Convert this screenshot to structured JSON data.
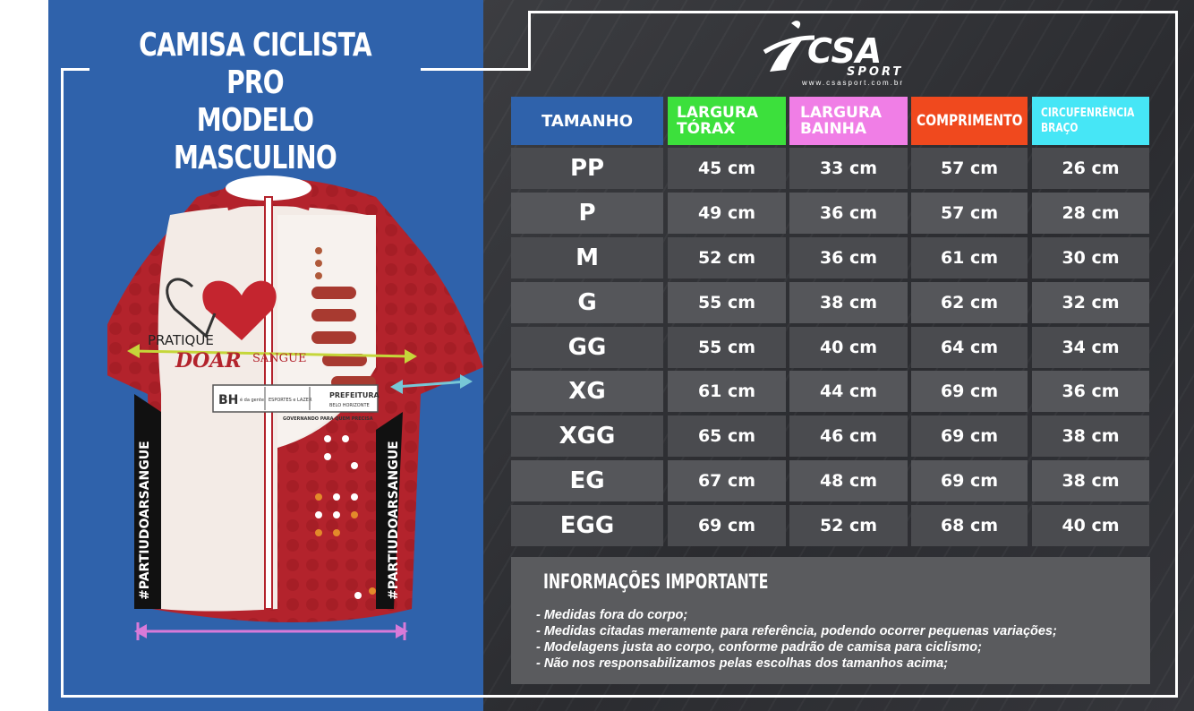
{
  "title": {
    "line1": "CAMISA  CICLISTA PRO",
    "line2": "MODELO MASCULINO"
  },
  "brand": {
    "name": "CSA",
    "sub": "SPORT",
    "url": "www.csasport.com.br"
  },
  "jersey": {
    "logo_text_1": "PRATIQUE",
    "logo_text_2": "DOAR",
    "logo_text_3": "SANGUE",
    "side_text": "#PARTIUDOARSANGUE",
    "sponsor_1": "BH",
    "sponsor_1_sub": "é da gente",
    "sponsor_2": "ESPORTES e LAZER",
    "sponsor_3": "PREFEITURA",
    "sponsor_3_sub": "BELO HORIZONTE",
    "sponsor_tagline": "GOVERNANDO PARA QUEM PRECISA"
  },
  "table": {
    "headers": {
      "size": "TAMANHO",
      "chest_1": "LARGURA",
      "chest_2": "TÓRAX",
      "hem_1": "LARGURA",
      "hem_2": "BAINHA",
      "length": "COMPRIMENTO",
      "arm_1": "CIRCUFENRÊNCIA",
      "arm_2": "BRAÇO"
    },
    "rows": [
      {
        "size": "PP",
        "chest": "45 cm",
        "hem": "33 cm",
        "length": "57 cm",
        "arm": "26 cm"
      },
      {
        "size": "P",
        "chest": "49 cm",
        "hem": "36 cm",
        "length": "57 cm",
        "arm": "28 cm"
      },
      {
        "size": "M",
        "chest": "52 cm",
        "hem": "36 cm",
        "length": "61 cm",
        "arm": "30 cm"
      },
      {
        "size": "G",
        "chest": "55 cm",
        "hem": "38 cm",
        "length": "62 cm",
        "arm": "32 cm"
      },
      {
        "size": "GG",
        "chest": "55 cm",
        "hem": "40 cm",
        "length": "64 cm",
        "arm": "34 cm"
      },
      {
        "size": "XG",
        "chest": "61 cm",
        "hem": "44 cm",
        "length": "69 cm",
        "arm": "36 cm"
      },
      {
        "size": "XGG",
        "chest": "65 cm",
        "hem": "46 cm",
        "length": "69 cm",
        "arm": "38 cm"
      },
      {
        "size": "EG",
        "chest": "67 cm",
        "hem": "48 cm",
        "length": "69 cm",
        "arm": "38 cm"
      },
      {
        "size": "EGG",
        "chest": "69 cm",
        "hem": "52 cm",
        "length": "68 cm",
        "arm": "40 cm"
      }
    ]
  },
  "info": {
    "title": "INFORMAÇÕES IMPORTANTE",
    "items": [
      "- Medidas fora do corpo;",
      "- Medidas citadas meramente para referência, podendo ocorrer pequenas variações;",
      "- Modelagens justa ao corpo, conforme padrão de camisa para ciclismo;",
      "- Não nos responsabilizamos pelas escolhas dos tamanhos acima;"
    ]
  },
  "colors": {
    "panel_blue": "#2f62ab",
    "chest": "#3ce03c",
    "hem": "#f07ee6",
    "length": "#f0491e",
    "arm": "#46e6f6",
    "jersey_red": "#b0202a"
  }
}
